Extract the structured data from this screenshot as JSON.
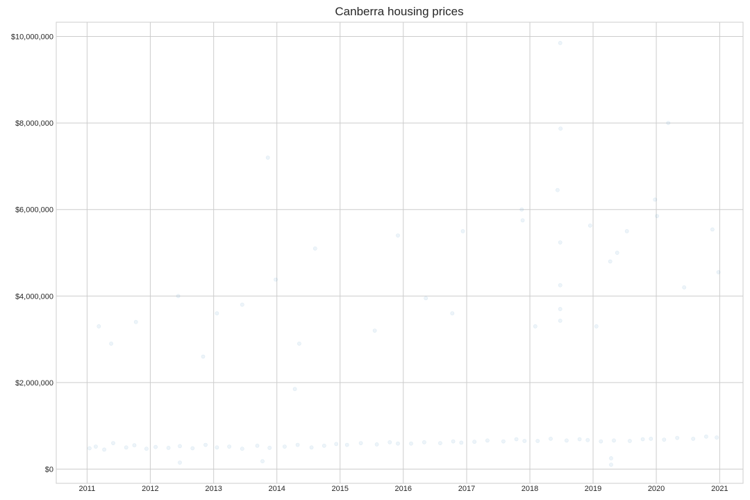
{
  "chart_data": {
    "type": "scatter",
    "title": "Canberra housing prices",
    "xlabel": "",
    "ylabel": "",
    "x_axis": {
      "kind": "date",
      "range": [
        "2010-07-07",
        "2021-05-16"
      ],
      "ticks": [
        {
          "value": "2011-01-01",
          "label": "2011"
        },
        {
          "value": "2012-01-01",
          "label": "2012"
        },
        {
          "value": "2013-01-01",
          "label": "2013"
        },
        {
          "value": "2014-01-01",
          "label": "2014"
        },
        {
          "value": "2015-01-01",
          "label": "2015"
        },
        {
          "value": "2016-01-01",
          "label": "2016"
        },
        {
          "value": "2017-01-01",
          "label": "2017"
        },
        {
          "value": "2018-01-01",
          "label": "2018"
        },
        {
          "value": "2019-01-01",
          "label": "2019"
        },
        {
          "value": "2020-01-01",
          "label": "2020"
        },
        {
          "value": "2021-01-01",
          "label": "2021"
        }
      ]
    },
    "y_axis": {
      "range": [
        -330000,
        10330000
      ],
      "ticks": [
        {
          "value": 0,
          "label": "$0"
        },
        {
          "value": 2000000,
          "label": "$2,000,000"
        },
        {
          "value": 4000000,
          "label": "$4,000,000"
        },
        {
          "value": 6000000,
          "label": "$6,000,000"
        },
        {
          "value": 8000000,
          "label": "$8,000,000"
        },
        {
          "value": 10000000,
          "label": "$10,000,000"
        }
      ]
    },
    "grid": true,
    "marker_color": "#1f77b4",
    "marker_alpha": 0.08,
    "series": [
      {
        "points": [
          [
            "2011-01-15",
            480000
          ],
          [
            "2011-02-20",
            520000
          ],
          [
            "2011-04-10",
            450000
          ],
          [
            "2011-06-01",
            600000
          ],
          [
            "2011-08-15",
            500000
          ],
          [
            "2011-10-01",
            550000
          ],
          [
            "2011-12-10",
            470000
          ],
          [
            "2012-02-01",
            510000
          ],
          [
            "2012-04-15",
            490000
          ],
          [
            "2012-06-20",
            530000
          ],
          [
            "2012-09-01",
            480000
          ],
          [
            "2012-11-15",
            560000
          ],
          [
            "2013-01-20",
            500000
          ],
          [
            "2013-04-01",
            520000
          ],
          [
            "2013-06-15",
            470000
          ],
          [
            "2013-09-10",
            540000
          ],
          [
            "2013-11-20",
            490000
          ],
          [
            "2014-02-15",
            520000
          ],
          [
            "2014-05-01",
            560000
          ],
          [
            "2014-07-20",
            500000
          ],
          [
            "2014-10-01",
            540000
          ],
          [
            "2014-12-10",
            580000
          ],
          [
            "2015-02-10",
            560000
          ],
          [
            "2015-05-01",
            600000
          ],
          [
            "2015-08-01",
            570000
          ],
          [
            "2015-10-15",
            620000
          ],
          [
            "2015-12-01",
            590000
          ],
          [
            "2016-02-15",
            590000
          ],
          [
            "2016-05-01",
            620000
          ],
          [
            "2016-08-01",
            600000
          ],
          [
            "2016-10-15",
            640000
          ],
          [
            "2016-12-01",
            610000
          ],
          [
            "2017-02-15",
            630000
          ],
          [
            "2017-05-01",
            660000
          ],
          [
            "2017-08-01",
            640000
          ],
          [
            "2017-10-15",
            690000
          ],
          [
            "2017-12-01",
            650000
          ],
          [
            "2018-02-15",
            650000
          ],
          [
            "2018-05-01",
            700000
          ],
          [
            "2018-08-01",
            660000
          ],
          [
            "2018-10-15",
            690000
          ],
          [
            "2018-12-01",
            670000
          ],
          [
            "2019-02-15",
            640000
          ],
          [
            "2019-05-01",
            660000
          ],
          [
            "2019-08-01",
            650000
          ],
          [
            "2019-10-15",
            690000
          ],
          [
            "2019-12-01",
            700000
          ],
          [
            "2020-02-15",
            680000
          ],
          [
            "2020-05-01",
            720000
          ],
          [
            "2020-08-01",
            700000
          ],
          [
            "2020-10-15",
            750000
          ],
          [
            "2020-12-15",
            730000
          ],
          [
            "2011-03-10",
            3300000
          ],
          [
            "2011-05-20",
            2900000
          ],
          [
            "2012-06-10",
            4000000
          ],
          [
            "2013-01-20",
            3600000
          ],
          [
            "2013-06-15",
            3800000
          ],
          [
            "2013-11-10",
            7200000
          ],
          [
            "2013-12-25",
            4380000
          ],
          [
            "2014-08-10",
            5100000
          ],
          [
            "2015-07-20",
            3200000
          ],
          [
            "2015-12-01",
            5400000
          ],
          [
            "2016-05-10",
            3950000
          ],
          [
            "2016-12-10",
            5500000
          ],
          [
            "2017-11-15",
            6000000
          ],
          [
            "2017-11-20",
            5750000
          ],
          [
            "2018-06-10",
            6450000
          ],
          [
            "2018-06-25",
            9850000
          ],
          [
            "2018-06-27",
            7870000
          ],
          [
            "2018-06-25",
            5240000
          ],
          [
            "2018-06-25",
            4250000
          ],
          [
            "2018-06-25",
            3700000
          ],
          [
            "2018-06-25",
            3430000
          ],
          [
            "2018-12-15",
            5630000
          ],
          [
            "2019-04-10",
            4800000
          ],
          [
            "2019-05-20",
            5000000
          ],
          [
            "2019-07-15",
            5500000
          ],
          [
            "2019-12-25",
            6230000
          ],
          [
            "2020-01-05",
            5850000
          ],
          [
            "2020-03-10",
            8000000
          ],
          [
            "2020-11-20",
            5540000
          ],
          [
            "2020-12-25",
            4550000
          ],
          [
            "2014-05-10",
            2900000
          ],
          [
            "2016-10-10",
            3600000
          ],
          [
            "2018-02-01",
            3300000
          ],
          [
            "2019-01-20",
            3300000
          ],
          [
            "2020-06-10",
            4200000
          ],
          [
            "2012-11-01",
            2600000
          ],
          [
            "2011-10-10",
            3400000
          ],
          [
            "2019-04-15",
            100000
          ],
          [
            "2019-04-15",
            250000
          ],
          [
            "2012-06-20",
            150000
          ],
          [
            "2013-10-10",
            180000
          ],
          [
            "2014-04-15",
            1850000
          ]
        ]
      }
    ]
  }
}
